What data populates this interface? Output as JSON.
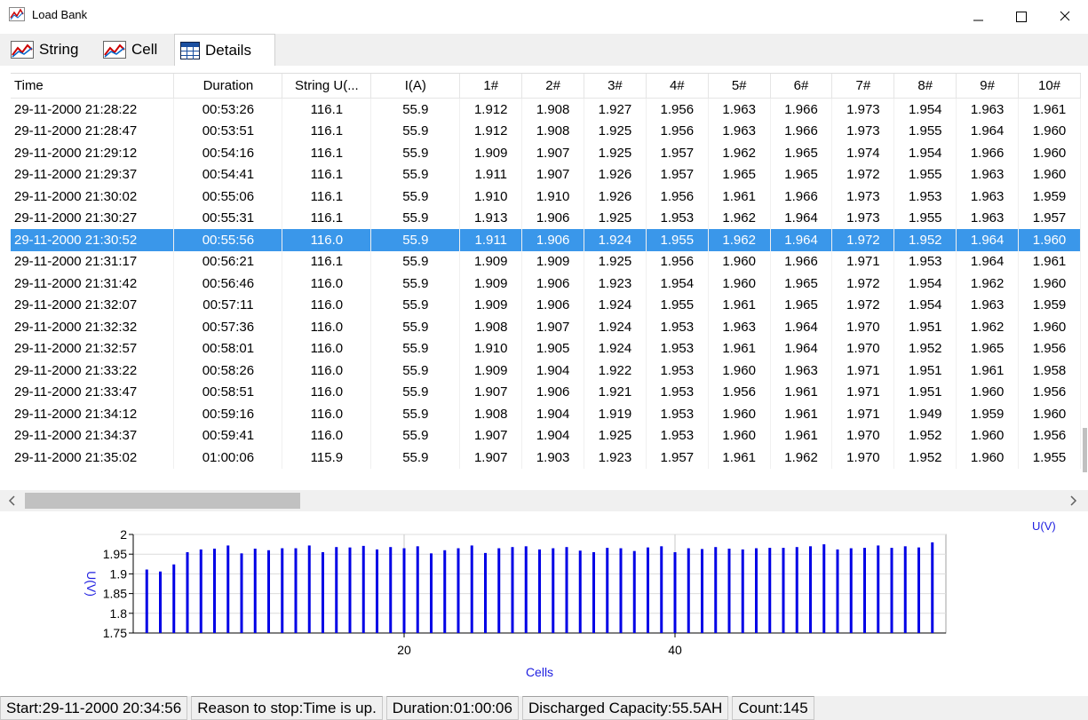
{
  "window": {
    "title": "Load Bank"
  },
  "tabs": [
    "String",
    "Cell",
    "Details"
  ],
  "table": {
    "columns": [
      "Time",
      "Duration",
      "String U(...",
      "I(A)",
      "1#",
      "2#",
      "3#",
      "4#",
      "5#",
      "6#",
      "7#",
      "8#",
      "9#",
      "10#"
    ],
    "selected_row": 6,
    "rows": [
      [
        "29-11-2000 21:28:22",
        "00:53:26",
        "116.1",
        "55.9",
        "1.912",
        "1.908",
        "1.927",
        "1.956",
        "1.963",
        "1.966",
        "1.973",
        "1.954",
        "1.963",
        "1.961"
      ],
      [
        "29-11-2000 21:28:47",
        "00:53:51",
        "116.1",
        "55.9",
        "1.912",
        "1.908",
        "1.925",
        "1.956",
        "1.963",
        "1.966",
        "1.973",
        "1.955",
        "1.964",
        "1.960"
      ],
      [
        "29-11-2000 21:29:12",
        "00:54:16",
        "116.1",
        "55.9",
        "1.909",
        "1.907",
        "1.925",
        "1.957",
        "1.962",
        "1.965",
        "1.974",
        "1.954",
        "1.966",
        "1.960"
      ],
      [
        "29-11-2000 21:29:37",
        "00:54:41",
        "116.1",
        "55.9",
        "1.911",
        "1.907",
        "1.926",
        "1.957",
        "1.965",
        "1.965",
        "1.972",
        "1.955",
        "1.963",
        "1.960"
      ],
      [
        "29-11-2000 21:30:02",
        "00:55:06",
        "116.1",
        "55.9",
        "1.910",
        "1.910",
        "1.926",
        "1.956",
        "1.961",
        "1.966",
        "1.973",
        "1.953",
        "1.963",
        "1.959"
      ],
      [
        "29-11-2000 21:30:27",
        "00:55:31",
        "116.1",
        "55.9",
        "1.913",
        "1.906",
        "1.925",
        "1.953",
        "1.962",
        "1.964",
        "1.973",
        "1.955",
        "1.963",
        "1.957"
      ],
      [
        "29-11-2000 21:30:52",
        "00:55:56",
        "116.0",
        "55.9",
        "1.911",
        "1.906",
        "1.924",
        "1.955",
        "1.962",
        "1.964",
        "1.972",
        "1.952",
        "1.964",
        "1.960"
      ],
      [
        "29-11-2000 21:31:17",
        "00:56:21",
        "116.1",
        "55.9",
        "1.909",
        "1.909",
        "1.925",
        "1.956",
        "1.960",
        "1.966",
        "1.971",
        "1.953",
        "1.964",
        "1.961"
      ],
      [
        "29-11-2000 21:31:42",
        "00:56:46",
        "116.0",
        "55.9",
        "1.909",
        "1.906",
        "1.923",
        "1.954",
        "1.960",
        "1.965",
        "1.972",
        "1.954",
        "1.962",
        "1.960"
      ],
      [
        "29-11-2000 21:32:07",
        "00:57:11",
        "116.0",
        "55.9",
        "1.909",
        "1.906",
        "1.924",
        "1.955",
        "1.961",
        "1.965",
        "1.972",
        "1.954",
        "1.963",
        "1.959"
      ],
      [
        "29-11-2000 21:32:32",
        "00:57:36",
        "116.0",
        "55.9",
        "1.908",
        "1.907",
        "1.924",
        "1.953",
        "1.963",
        "1.964",
        "1.970",
        "1.951",
        "1.962",
        "1.960"
      ],
      [
        "29-11-2000 21:32:57",
        "00:58:01",
        "116.0",
        "55.9",
        "1.910",
        "1.905",
        "1.924",
        "1.953",
        "1.961",
        "1.964",
        "1.970",
        "1.952",
        "1.965",
        "1.956"
      ],
      [
        "29-11-2000 21:33:22",
        "00:58:26",
        "116.0",
        "55.9",
        "1.909",
        "1.904",
        "1.922",
        "1.953",
        "1.960",
        "1.963",
        "1.971",
        "1.951",
        "1.961",
        "1.958"
      ],
      [
        "29-11-2000 21:33:47",
        "00:58:51",
        "116.0",
        "55.9",
        "1.907",
        "1.906",
        "1.921",
        "1.953",
        "1.956",
        "1.961",
        "1.971",
        "1.951",
        "1.960",
        "1.956"
      ],
      [
        "29-11-2000 21:34:12",
        "00:59:16",
        "116.0",
        "55.9",
        "1.908",
        "1.904",
        "1.919",
        "1.953",
        "1.960",
        "1.961",
        "1.971",
        "1.949",
        "1.959",
        "1.960"
      ],
      [
        "29-11-2000 21:34:37",
        "00:59:41",
        "116.0",
        "55.9",
        "1.907",
        "1.904",
        "1.925",
        "1.953",
        "1.960",
        "1.961",
        "1.970",
        "1.952",
        "1.960",
        "1.956"
      ],
      [
        "29-11-2000 21:35:02",
        "01:00:06",
        "115.9",
        "55.9",
        "1.907",
        "1.903",
        "1.923",
        "1.957",
        "1.961",
        "1.962",
        "1.970",
        "1.952",
        "1.960",
        "1.955"
      ]
    ]
  },
  "chart_data": {
    "type": "bar",
    "x_label": "Cells",
    "y_label": "U(V)",
    "x": [
      1,
      2,
      3,
      4,
      5,
      6,
      7,
      8,
      9,
      10,
      11,
      12,
      13,
      14,
      15,
      16,
      17,
      18,
      19,
      20,
      21,
      22,
      23,
      24,
      25,
      26,
      27,
      28,
      29,
      30,
      31,
      32,
      33,
      34,
      35,
      36,
      37,
      38,
      39,
      40,
      41,
      42,
      43,
      44,
      45,
      46,
      47,
      48,
      49,
      50,
      51,
      52,
      53,
      54,
      55,
      56,
      57,
      58,
      59
    ],
    "series": [
      {
        "name": "U(V)",
        "color": "#0000e6",
        "values": [
          1.911,
          1.906,
          1.924,
          1.955,
          1.962,
          1.964,
          1.972,
          1.952,
          1.964,
          1.96,
          1.965,
          1.965,
          1.972,
          1.955,
          1.968,
          1.967,
          1.971,
          1.962,
          1.968,
          1.965,
          1.97,
          1.952,
          1.96,
          1.965,
          1.972,
          1.953,
          1.965,
          1.968,
          1.97,
          1.962,
          1.965,
          1.968,
          1.959,
          1.955,
          1.966,
          1.965,
          1.958,
          1.967,
          1.97,
          1.955,
          1.965,
          1.963,
          1.968,
          1.964,
          1.962,
          1.965,
          1.966,
          1.966,
          1.968,
          1.97,
          1.975,
          1.962,
          1.965,
          1.966,
          1.972,
          1.966,
          1.97,
          1.967,
          1.98
        ]
      }
    ],
    "xlim": [
      0,
      60
    ],
    "xticks": [
      20,
      40
    ],
    "ylim": [
      1.75,
      2
    ],
    "yticks": [
      1.75,
      1.8,
      1.85,
      1.9,
      1.95,
      2
    ],
    "grid": true,
    "legend": "top-right"
  },
  "status": [
    "Start:29-11-2000 20:34:56",
    "Reason to stop:Time is up.",
    "Duration:01:00:06",
    "Discharged Capacity:55.5AH",
    "Count:145"
  ]
}
